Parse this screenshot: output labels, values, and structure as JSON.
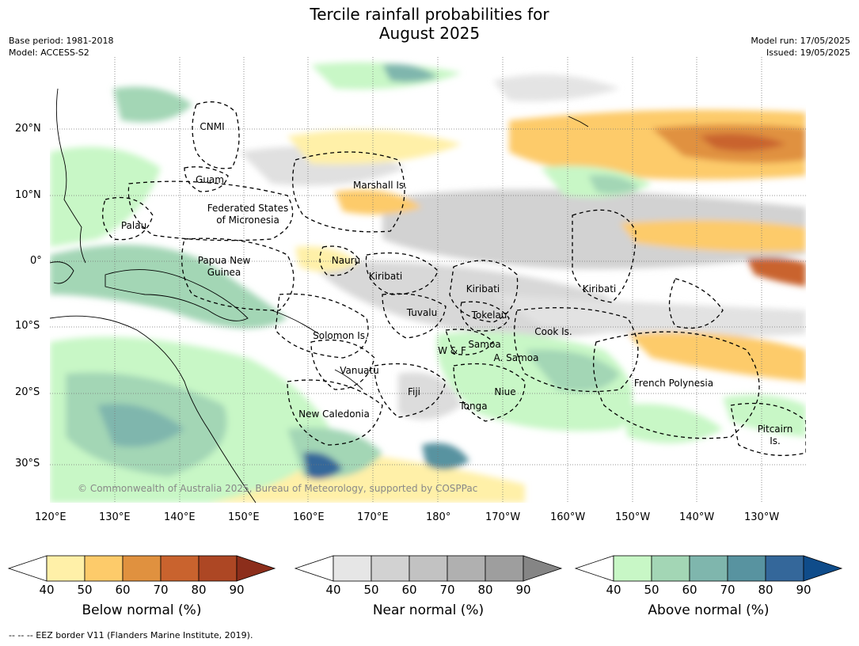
{
  "title_line1": "Tercile rainfall probabilities for",
  "title_line2": "August 2025",
  "meta_left": [
    "Base period: 1981-2018",
    "Model: ACCESS-S2"
  ],
  "meta_right": [
    "Model run: 17/05/2025",
    "Issued: 19/05/2025"
  ],
  "copyright": "© Commonwealth of Australia 2025, Bureau of Meteorology, supported by COSPPac",
  "lat_labels": [
    "20°N",
    "10°N",
    "0°",
    "10°S",
    "20°S",
    "30°S"
  ],
  "lon_labels": [
    "120°E",
    "130°E",
    "140°E",
    "150°E",
    "160°E",
    "170°E",
    "180°",
    "170°W",
    "160°W",
    "150°W",
    "140°W",
    "130°W"
  ],
  "regions": [
    "CNMI",
    "Guam",
    "Marshall Is.",
    "Federated States",
    "of Micronesia",
    "Palau",
    "Papua New",
    "Guinea",
    "Nauru",
    "Kiribati",
    "Kiribati",
    "Kiribati",
    "Tuvalu",
    "Tokelau",
    "Solomon Is.",
    "Cook Is.",
    "Samoa",
    "W & F",
    "A. Samoa",
    "Vanuatu",
    "Fiji",
    "Niue",
    "Tonga",
    "New Caledonia",
    "French Polynesia",
    "Pitcairn",
    "Is."
  ],
  "colorbars": [
    {
      "title": "Below normal (%)",
      "ticks": [
        "40",
        "50",
        "60",
        "70",
        "80",
        "90"
      ],
      "colors": [
        "#fff0a8",
        "#fdcb6a",
        "#e0913f",
        "#c9632e",
        "#ad4724",
        "#8c2e1b"
      ]
    },
    {
      "title": "Near normal (%)",
      "ticks": [
        "40",
        "50",
        "60",
        "70",
        "80",
        "90"
      ],
      "colors": [
        "#e6e6e6",
        "#d2d2d2",
        "#c2c2c2",
        "#b0b0b0",
        "#9e9e9e",
        "#858585"
      ]
    },
    {
      "title": "Above normal (%)",
      "ticks": [
        "40",
        "50",
        "60",
        "70",
        "80",
        "90"
      ],
      "colors": [
        "#c8f7c6",
        "#a3d6b5",
        "#7fb6ad",
        "#5893a0",
        "#34679a",
        "#0f4c8a"
      ]
    }
  ],
  "footnote": "-- -- -- EEZ border V11 (Flanders Marine Institute, 2019)."
}
